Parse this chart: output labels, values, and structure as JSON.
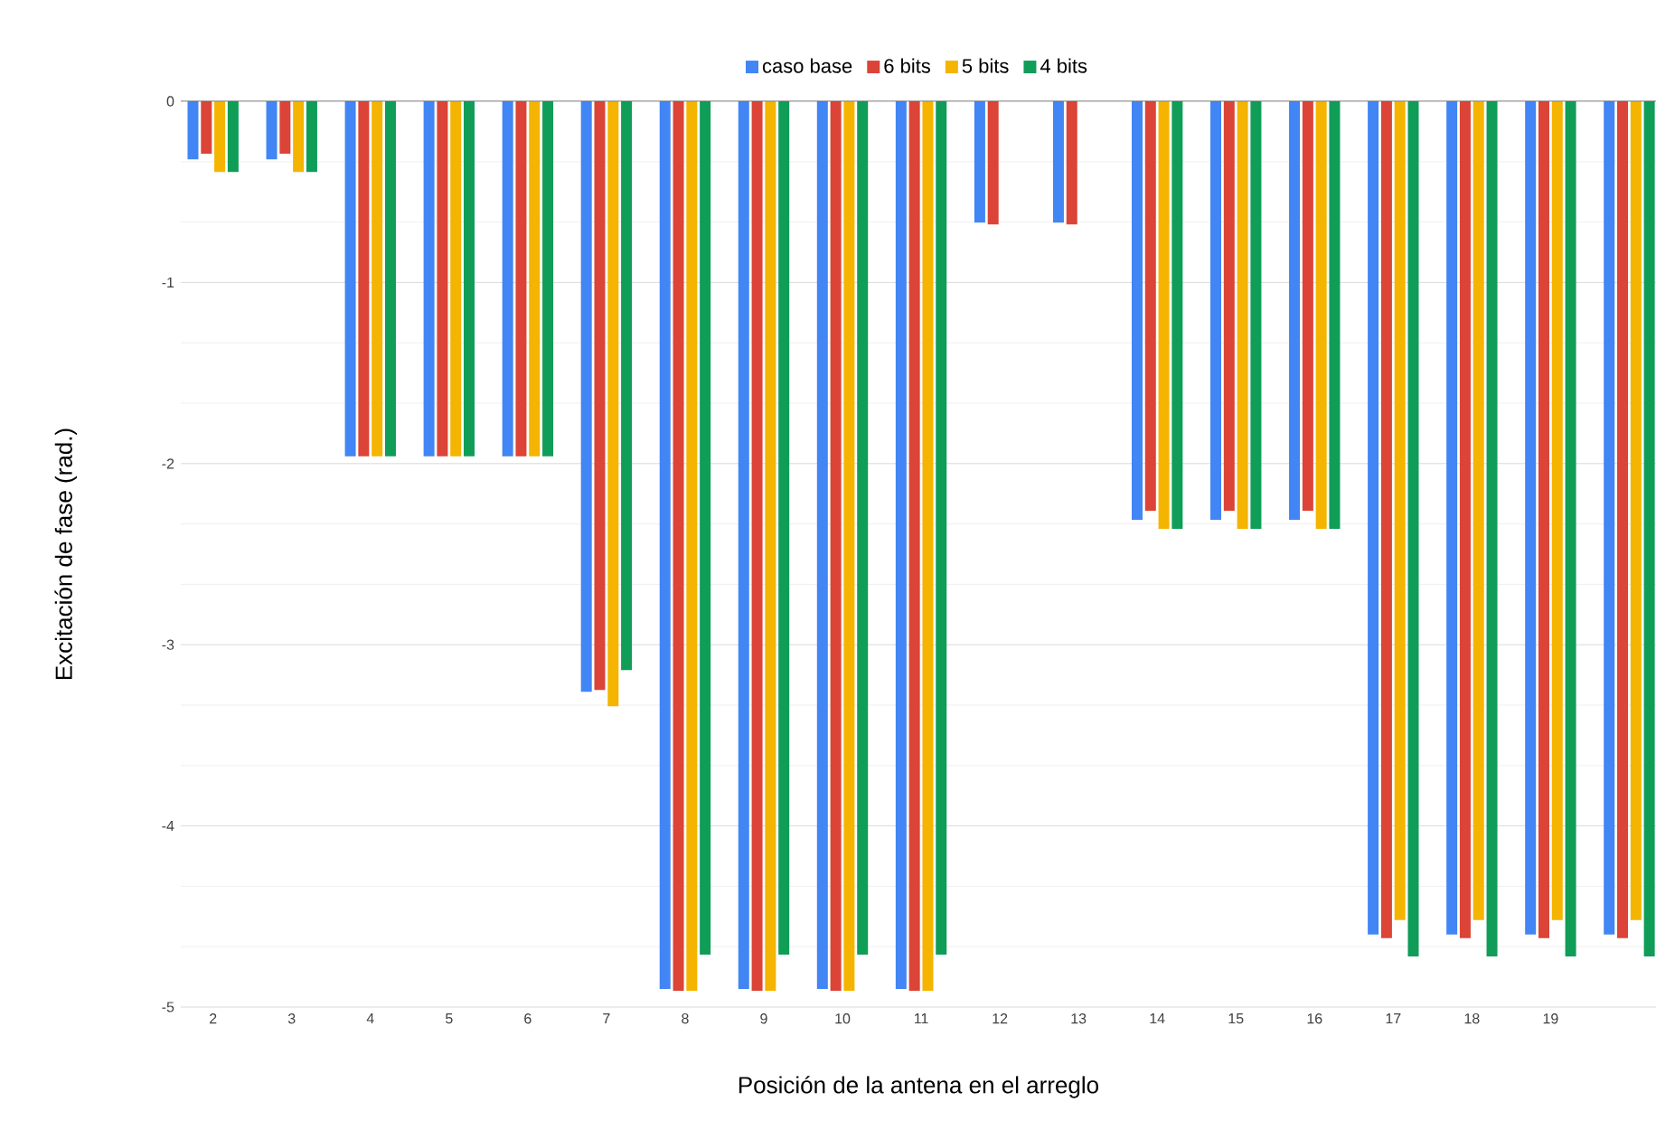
{
  "chart_data": {
    "type": "bar",
    "xlabel": "Posición de la antena en el arreglo",
    "ylabel": "Excitación de fase (rad.)",
    "categories": [
      "2",
      "3",
      "4",
      "5",
      "6",
      "7",
      "8",
      "9",
      "10",
      "11",
      "12",
      "13",
      "14",
      "15",
      "16",
      "17",
      "18",
      "19",
      null
    ],
    "series": [
      {
        "name": "caso base",
        "color": "#4285f4",
        "values": [
          -0.32,
          -0.32,
          -1.96,
          -1.96,
          -1.96,
          -3.26,
          -4.9,
          -4.9,
          -4.9,
          -4.9,
          -0.67,
          -0.67,
          -2.31,
          -2.31,
          -2.31,
          -4.6,
          -4.6,
          -4.6,
          -4.6
        ]
      },
      {
        "name": "6 bits",
        "color": "#db4437",
        "values": [
          -0.29,
          -0.29,
          -1.96,
          -1.96,
          -1.96,
          -3.25,
          -4.91,
          -4.91,
          -4.91,
          -4.91,
          -0.68,
          -0.68,
          -2.26,
          -2.26,
          -2.26,
          -4.62,
          -4.62,
          -4.62,
          -4.62
        ]
      },
      {
        "name": "5 bits",
        "color": "#f4b400",
        "values": [
          -0.39,
          -0.39,
          -1.96,
          -1.96,
          -1.96,
          -3.34,
          -4.91,
          -4.91,
          -4.91,
          -4.91,
          null,
          null,
          -2.36,
          -2.36,
          -2.36,
          -4.52,
          -4.52,
          -4.52,
          -4.52
        ]
      },
      {
        "name": "4 bits",
        "color": "#0f9d58",
        "values": [
          -0.39,
          -0.39,
          -1.96,
          -1.96,
          -1.96,
          -3.14,
          -4.71,
          -4.71,
          -4.71,
          -4.71,
          null,
          null,
          -2.36,
          -2.36,
          -2.36,
          -4.72,
          -4.72,
          -4.72,
          -4.72
        ]
      }
    ],
    "ylim": [
      -5,
      0
    ],
    "yticks": [
      0,
      -1,
      -2,
      -3,
      -4,
      -5
    ],
    "grid": "y",
    "legend": "top"
  }
}
